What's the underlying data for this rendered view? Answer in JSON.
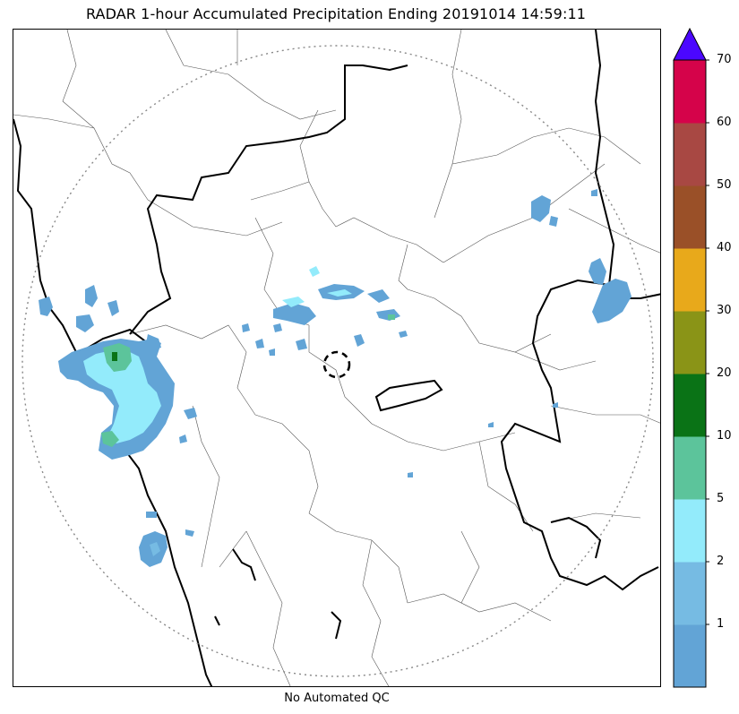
{
  "title": "RADAR 1-hour Accumulated Precipitation Ending 20191014 14:59:11",
  "footnote": "No Automated QC",
  "colorbar": {
    "labels": [
      "1",
      "2",
      "5",
      "10",
      "20",
      "30",
      "40",
      "50",
      "60",
      "70"
    ],
    "colors": [
      "#62a4d6",
      "#76bbe3",
      "#93ebfb",
      "#5cc49b",
      "#0a7316",
      "#8a9417",
      "#e8a91b",
      "#9a5028",
      "#a84843",
      "#d5034a"
    ],
    "extend_color": "#4b07ff"
  },
  "map": {
    "range_ring_color": "#888888",
    "radar_marker": "dashed-circle"
  }
}
